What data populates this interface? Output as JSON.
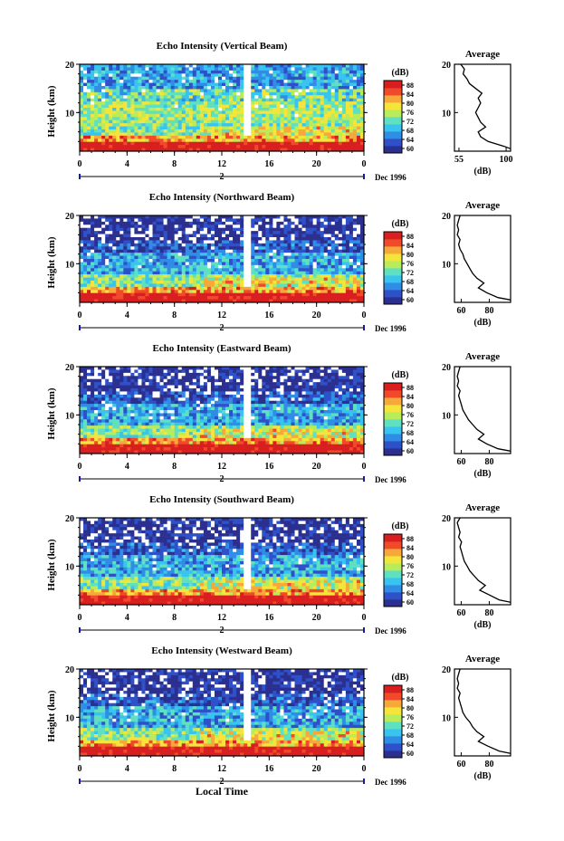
{
  "panels": [
    {
      "title": "Echo Intensity (Vertical Beam)",
      "ylabel": "Height (km)",
      "cb_unit": "(dB)",
      "avg_title": "Average",
      "avg_xlabel": "(dB)",
      "avg_xticks": [
        "55",
        "100"
      ],
      "date_day": "2",
      "date_label": "Dec 1996"
    },
    {
      "title": "Echo Intensity (Northward Beam)",
      "ylabel": "Height (km)",
      "cb_unit": "(dB)",
      "avg_title": "Average",
      "avg_xlabel": "(dB)",
      "avg_xticks": [
        "60",
        "80"
      ],
      "date_day": "2",
      "date_label": "Dec 1996"
    },
    {
      "title": "Echo Intensity (Eastward Beam)",
      "ylabel": "Height (km)",
      "cb_unit": "(dB)",
      "avg_title": "Average",
      "avg_xlabel": "(dB)",
      "avg_xticks": [
        "60",
        "80"
      ],
      "date_day": "2",
      "date_label": "Dec 1996"
    },
    {
      "title": "Echo Intensity (Southward Beam)",
      "ylabel": "Height (km)",
      "cb_unit": "(dB)",
      "avg_title": "Average",
      "avg_xlabel": "(dB)",
      "avg_xticks": [
        "60",
        "80"
      ],
      "date_day": "2",
      "date_label": "Dec 1996"
    },
    {
      "title": "Echo Intensity (Westward Beam)",
      "ylabel": "Height (km)",
      "cb_unit": "(dB)",
      "avg_title": "Average",
      "avg_xlabel": "(dB)",
      "avg_xticks": [
        "60",
        "80"
      ],
      "date_day": "2",
      "date_label": "Dec 1996"
    }
  ],
  "xlabel": "Local Time",
  "chart_data": {
    "type": "heatmap",
    "x_ticks": [
      "0",
      "4",
      "8",
      "12",
      "16",
      "20",
      "0"
    ],
    "y_ticks": [
      "10",
      "20"
    ],
    "xlim": [
      0,
      24
    ],
    "ylim": [
      2,
      20
    ],
    "colorbar_ticks": [
      "88",
      "84",
      "80",
      "76",
      "72",
      "68",
      "64",
      "60"
    ],
    "colorbar_range": [
      58,
      90
    ],
    "colorbar_colors": [
      "#2b2f8f",
      "#2e50c8",
      "#2f8de6",
      "#38c4ee",
      "#5fe0c0",
      "#b8ec5a",
      "#f5e43a",
      "#f7a83a",
      "#f04a2a",
      "#d81e1e"
    ],
    "averages": [
      {
        "beam": "Vertical",
        "xlim": [
          55,
          100
        ],
        "profile": [
          [
            100,
            2.5
          ],
          [
            95,
            3
          ],
          [
            82,
            4
          ],
          [
            76,
            5
          ],
          [
            74,
            6
          ],
          [
            80,
            7
          ],
          [
            76,
            8
          ],
          [
            74,
            9
          ],
          [
            72,
            10
          ],
          [
            74,
            11
          ],
          [
            76,
            12
          ],
          [
            74,
            13
          ],
          [
            77,
            14
          ],
          [
            72,
            15
          ],
          [
            67,
            16
          ],
          [
            65,
            17
          ],
          [
            62,
            18
          ],
          [
            63,
            19
          ],
          [
            60,
            20
          ]
        ]
      },
      {
        "beam": "Northward",
        "xlim": [
          55,
          95
        ],
        "profile": [
          [
            95,
            2.5
          ],
          [
            86,
            3
          ],
          [
            78,
            4
          ],
          [
            72,
            5
          ],
          [
            76,
            6
          ],
          [
            71,
            7
          ],
          [
            68,
            8
          ],
          [
            66,
            9
          ],
          [
            64,
            10
          ],
          [
            62,
            11
          ],
          [
            61,
            12
          ],
          [
            59,
            13
          ],
          [
            58,
            14
          ],
          [
            59,
            15
          ],
          [
            57,
            16
          ],
          [
            58,
            17
          ],
          [
            57,
            18
          ],
          [
            58,
            19
          ],
          [
            59,
            20
          ]
        ]
      },
      {
        "beam": "Eastward",
        "xlim": [
          55,
          95
        ],
        "profile": [
          [
            95,
            2.5
          ],
          [
            86,
            3
          ],
          [
            78,
            4
          ],
          [
            72,
            5
          ],
          [
            76,
            6
          ],
          [
            71,
            7
          ],
          [
            68,
            8
          ],
          [
            65,
            9
          ],
          [
            63,
            10
          ],
          [
            61,
            11
          ],
          [
            60,
            12
          ],
          [
            59,
            13
          ],
          [
            58,
            14
          ],
          [
            59,
            15
          ],
          [
            57,
            16
          ],
          [
            58,
            17
          ],
          [
            57,
            18
          ],
          [
            58,
            19
          ],
          [
            59,
            20
          ]
        ]
      },
      {
        "beam": "Southward",
        "xlim": [
          55,
          95
        ],
        "profile": [
          [
            95,
            2.5
          ],
          [
            87,
            3
          ],
          [
            80,
            4
          ],
          [
            73,
            5
          ],
          [
            77,
            6
          ],
          [
            72,
            7
          ],
          [
            69,
            8
          ],
          [
            66,
            9
          ],
          [
            64,
            10
          ],
          [
            62,
            11
          ],
          [
            61,
            12
          ],
          [
            60,
            13
          ],
          [
            59,
            14
          ],
          [
            60,
            15
          ],
          [
            58,
            16
          ],
          [
            59,
            17
          ],
          [
            58,
            18
          ],
          [
            57,
            19
          ],
          [
            59,
            20
          ]
        ]
      },
      {
        "beam": "Westward",
        "xlim": [
          55,
          95
        ],
        "profile": [
          [
            95,
            2.5
          ],
          [
            87,
            3
          ],
          [
            79,
            4
          ],
          [
            72,
            5
          ],
          [
            76,
            6
          ],
          [
            71,
            7
          ],
          [
            68,
            8
          ],
          [
            66,
            9
          ],
          [
            63,
            10
          ],
          [
            61,
            11
          ],
          [
            60,
            12
          ],
          [
            59,
            13
          ],
          [
            58,
            14
          ],
          [
            59,
            15
          ],
          [
            57,
            16
          ],
          [
            58,
            17
          ],
          [
            57,
            18
          ],
          [
            58,
            19
          ],
          [
            59,
            20
          ]
        ]
      }
    ]
  }
}
